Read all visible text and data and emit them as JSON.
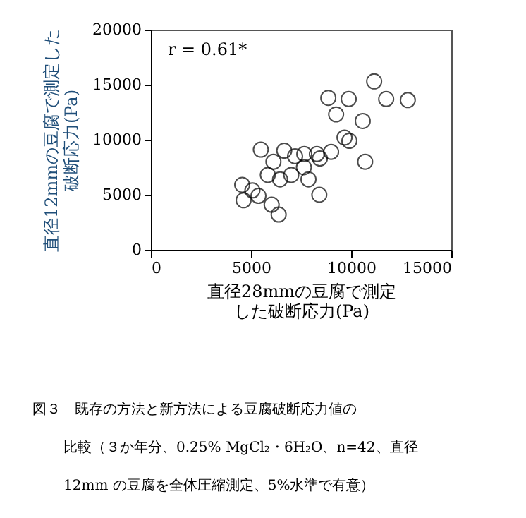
{
  "chart_data": {
    "type": "scatter",
    "xlabel": "直径28mmの豆腐で測定した破断応力(Pa)",
    "ylabel": "直径12mmの豆腐で測定した破断応力(Pa)",
    "x": [
      11150,
      8860,
      9880,
      11750,
      12830,
      9250,
      10580,
      9670,
      9910,
      5490,
      6660,
      7200,
      7660,
      8290,
      8440,
      9000,
      6120,
      10700,
      7640,
      5840,
      6450,
      7010,
      7870,
      4560,
      5070,
      5370,
      4630,
      8410,
      6030,
      6380
    ],
    "values": [
      15300,
      13800,
      13700,
      13700,
      13600,
      12300,
      11700,
      10200,
      9900,
      9100,
      9000,
      8500,
      8700,
      8700,
      8300,
      8900,
      8000,
      8000,
      7500,
      6800,
      6400,
      6800,
      6400,
      5900,
      5400,
      4900,
      4500,
      5000,
      4100,
      3200
    ],
    "color": "#000000",
    "marker": "circle",
    "grid": false,
    "xlim": [
      0,
      15000
    ],
    "xticks": [
      0,
      5000,
      10000,
      15000
    ],
    "ylim": [
      0,
      20000
    ],
    "yticks": [
      0,
      5000,
      10000,
      15000,
      20000
    ],
    "annotations": [
      "r = 0.61*",
      "図３　既存の方法と新方法による豆腐破断応力値の",
      "比較（３か年分、0.25% MgCl₂・6H₂O、n=42、直径",
      "12mm の豆腐を全体圧縮測定、5%水準で有意）"
    ]
  }
}
